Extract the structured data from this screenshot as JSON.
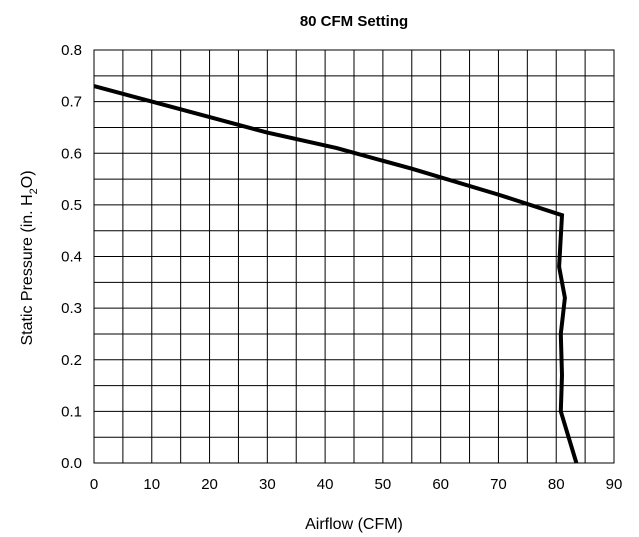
{
  "chart_data": {
    "type": "line",
    "title": "80 CFM Setting",
    "xlabel": "Airflow (CFM)",
    "ylabel": {
      "prefix": "Static Pressure (in. H",
      "subscript": "2",
      "suffix": "O)"
    },
    "xlim": [
      0,
      90
    ],
    "ylim": [
      0,
      0.8
    ],
    "x_ticks": [
      "0",
      "10",
      "20",
      "30",
      "40",
      "50",
      "60",
      "70",
      "80",
      "90"
    ],
    "y_ticks": [
      "0.0",
      "0.1",
      "0.2",
      "0.3",
      "0.4",
      "0.5",
      "0.6",
      "0.7",
      "0.8"
    ],
    "grid": true,
    "legend": "none",
    "series": [
      {
        "color": "#000000",
        "x": [
          0,
          10,
          20,
          30,
          42,
          55,
          70,
          81,
          80.5,
          81.5,
          80.8,
          81,
          80.8,
          83.5
        ],
        "y": [
          0.73,
          0.7,
          0.67,
          0.64,
          0.61,
          0.57,
          0.52,
          0.48,
          0.38,
          0.32,
          0.25,
          0.17,
          0.1,
          0.0
        ]
      }
    ]
  }
}
